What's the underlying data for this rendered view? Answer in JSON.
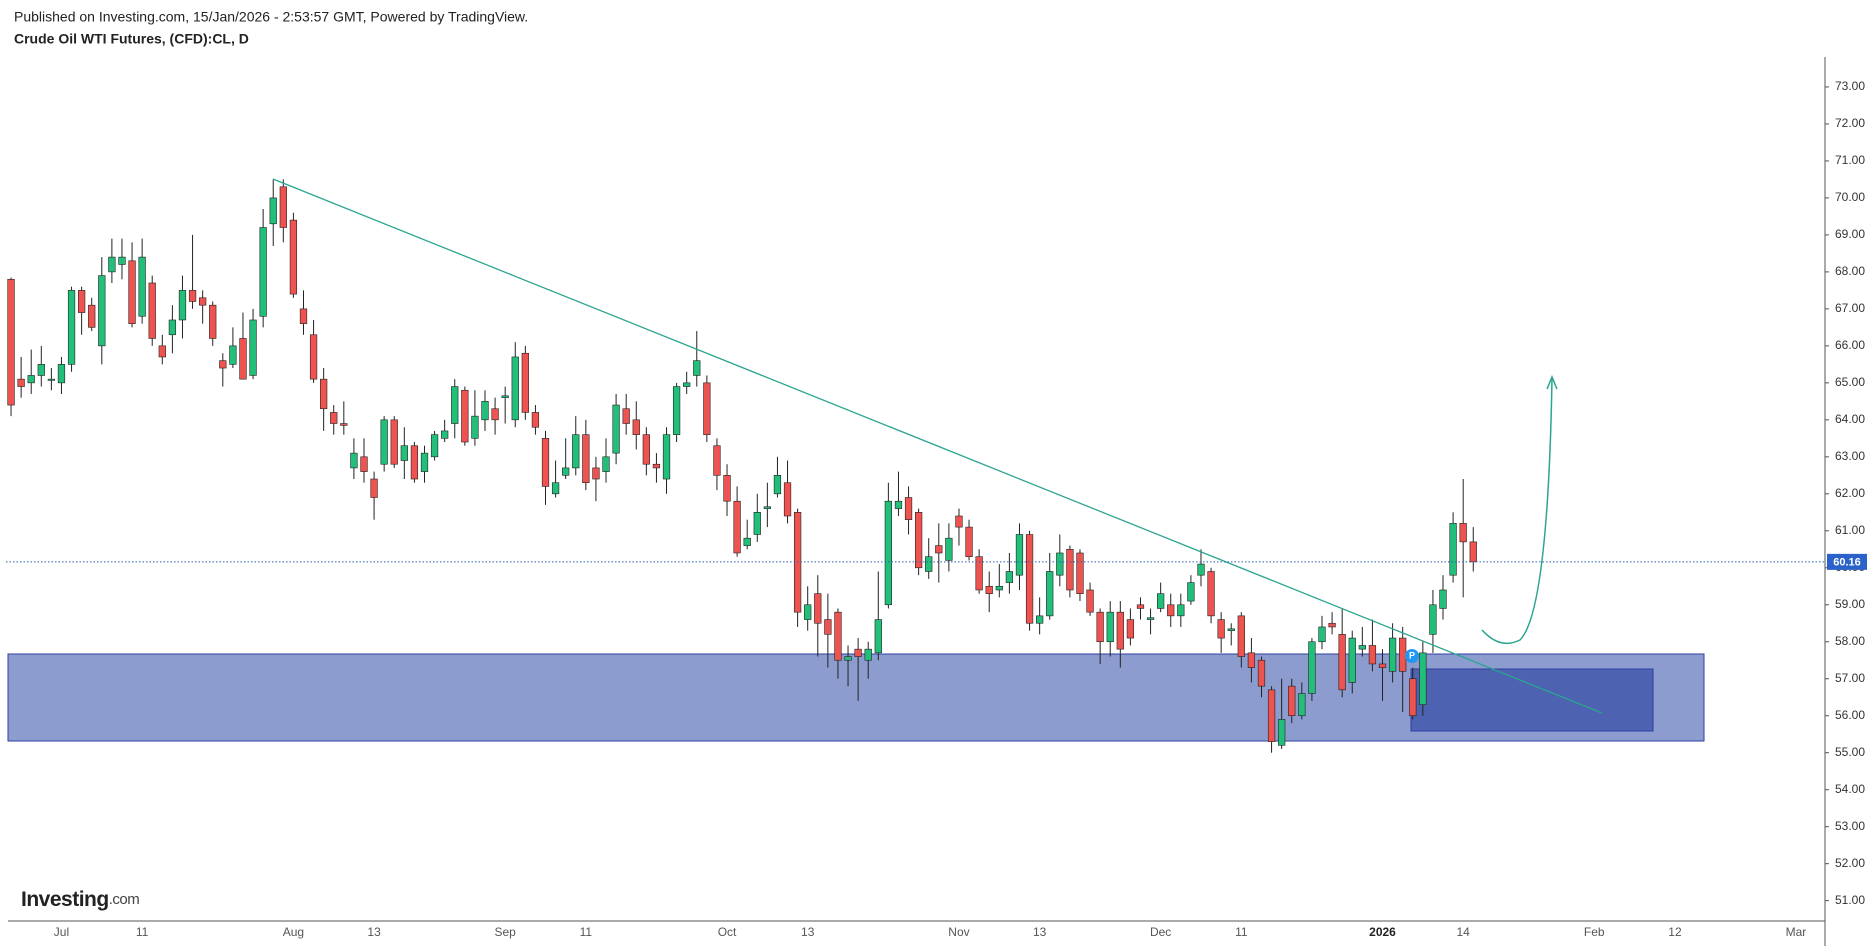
{
  "chart_data": {
    "type": "candlestick",
    "subtitle": "Published on Investing.com, 15/Jan/2026 - 2:53:57 GMT, Powered by TradingView.",
    "title": "Crude Oil WTI Futures, (CFD):CL, D",
    "up_color": "#22bf7a",
    "down_color": "#ef5350",
    "ylim": [
      50.45,
      73.81
    ],
    "yticks": [
      {
        "value": 51,
        "label": "51.00"
      },
      {
        "value": 52,
        "label": "52.00"
      },
      {
        "value": 53,
        "label": "53.00"
      },
      {
        "value": 54,
        "label": "54.00"
      },
      {
        "value": 55,
        "label": "55.00"
      },
      {
        "value": 56,
        "label": "56.00"
      },
      {
        "value": 57,
        "label": "57.00"
      },
      {
        "value": 58,
        "label": "58.00"
      },
      {
        "value": 59,
        "label": "59.00"
      },
      {
        "value": 60,
        "label": "60.00"
      },
      {
        "value": 61,
        "label": "61.00"
      },
      {
        "value": 62,
        "label": "62.00"
      },
      {
        "value": 63,
        "label": "63.00"
      },
      {
        "value": 64,
        "label": "64.00"
      },
      {
        "value": 65,
        "label": "65.00"
      },
      {
        "value": 66,
        "label": "66.00"
      },
      {
        "value": 67,
        "label": "67.00"
      },
      {
        "value": 68,
        "label": "68.00"
      },
      {
        "value": 69,
        "label": "69.00"
      },
      {
        "value": 70,
        "label": "70.00"
      },
      {
        "value": 71,
        "label": "71.00"
      },
      {
        "value": 72,
        "label": "72.00"
      },
      {
        "value": 73,
        "label": "73.00"
      }
    ],
    "categories": [
      null,
      null,
      null,
      null,
      null,
      "Jul",
      null,
      null,
      null,
      null,
      null,
      null,
      null,
      "11",
      null,
      null,
      null,
      null,
      null,
      null,
      null,
      null,
      null,
      null,
      null,
      null,
      null,
      null,
      "Aug",
      null,
      null,
      null,
      null,
      null,
      null,
      null,
      "13",
      null,
      null,
      null,
      null,
      null,
      null,
      null,
      null,
      null,
      null,
      null,
      null,
      "Sep",
      null,
      null,
      null,
      null,
      null,
      null,
      null,
      "11",
      null,
      null,
      null,
      null,
      null,
      null,
      null,
      null,
      null,
      null,
      null,
      null,
      null,
      "Oct",
      null,
      null,
      null,
      null,
      null,
      null,
      null,
      "13",
      null,
      null,
      null,
      null,
      null,
      null,
      null,
      null,
      null,
      null,
      null,
      null,
      null,
      null,
      "Nov",
      null,
      null,
      null,
      null,
      null,
      null,
      null,
      "13",
      null,
      null,
      null,
      null,
      null,
      null,
      null,
      null,
      null,
      null,
      null,
      "Dec",
      null,
      null,
      null,
      null,
      null,
      null,
      null,
      "11",
      null,
      null,
      null,
      null,
      null,
      null,
      null,
      null,
      null,
      null,
      null,
      null,
      null,
      "2026",
      null,
      null,
      null,
      null,
      null,
      null,
      null,
      "14",
      null,
      null,
      null,
      null,
      null,
      null,
      null,
      null,
      null,
      null,
      null,
      null,
      "Feb",
      null,
      null,
      null,
      null,
      null,
      null,
      null,
      "12",
      null,
      null,
      null,
      null,
      null,
      null,
      null,
      null,
      null,
      null,
      null,
      "Mar"
    ],
    "open": [
      67.8,
      65.1,
      65.0,
      65.2,
      65.1,
      65.0,
      65.5,
      67.5,
      67.1,
      66.0,
      68.0,
      68.2,
      68.3,
      66.8,
      67.7,
      66.0,
      66.3,
      66.7,
      67.5,
      67.3,
      67.1,
      65.6,
      65.5,
      66.2,
      65.2,
      66.8,
      69.3,
      70.3,
      69.4,
      67.0,
      66.3,
      65.1,
      64.2,
      63.9,
      62.7,
      63.0,
      62.4,
      62.8,
      64.0,
      62.9,
      63.3,
      62.6,
      63.0,
      63.5,
      63.9,
      64.8,
      63.5,
      64.0,
      64.3,
      64.6,
      64.0,
      65.8,
      64.2,
      63.5,
      62.0,
      62.5,
      62.7,
      63.6,
      62.7,
      62.6,
      63.1,
      64.3,
      64.0,
      63.6,
      62.8,
      62.4,
      63.6,
      64.9,
      65.2,
      65.0,
      63.3,
      62.5,
      61.8,
      60.6,
      60.9,
      61.6,
      62.0,
      62.3,
      61.5,
      58.6,
      59.3,
      58.6,
      58.8,
      57.5,
      57.8,
      57.5,
      57.7,
      59.0,
      61.6,
      61.9,
      61.5,
      59.9,
      60.6,
      60.2,
      61.4,
      61.1,
      60.3,
      59.5,
      59.4,
      59.6,
      59.8,
      60.9,
      58.5,
      58.7,
      59.8,
      60.5,
      60.4,
      59.4,
      58.8,
      58.0,
      58.8,
      58.6,
      59.0,
      58.6,
      58.9,
      59.0,
      58.7,
      59.1,
      59.8,
      59.9,
      58.6,
      58.3,
      58.7,
      57.7,
      57.5,
      56.7,
      55.2,
      56.8,
      56.0,
      56.6,
      58.0,
      58.5,
      58.2,
      56.9,
      57.8,
      57.9,
      57.4,
      57.2,
      58.1,
      57.0,
      56.3,
      58.2,
      58.9,
      59.8,
      61.2,
      60.7,
      null,
      null,
      null,
      null,
      null,
      null,
      null,
      null,
      null,
      null,
      null,
      null,
      null,
      null,
      null,
      null,
      null,
      null,
      null,
      null,
      null,
      null,
      null,
      null,
      null,
      null,
      null,
      null,
      null,
      null,
      null,
      null
    ],
    "high": [
      67.85,
      65.7,
      65.9,
      66.0,
      65.4,
      65.7,
      67.6,
      67.6,
      67.3,
      68.4,
      68.9,
      68.9,
      68.8,
      68.9,
      67.9,
      66.3,
      67.1,
      67.9,
      69.0,
      67.5,
      67.2,
      65.8,
      66.5,
      66.9,
      67.0,
      69.7,
      70.5,
      70.5,
      69.6,
      67.5,
      66.7,
      65.4,
      64.4,
      64.5,
      63.5,
      63.5,
      62.6,
      64.1,
      64.1,
      63.8,
      63.4,
      63.3,
      63.7,
      64.0,
      65.1,
      64.9,
      64.8,
      64.8,
      64.6,
      64.9,
      66.1,
      66.0,
      64.4,
      63.7,
      62.9,
      63.5,
      64.1,
      64.0,
      63.0,
      63.5,
      64.7,
      64.7,
      64.5,
      63.8,
      63.1,
      63.8,
      65.0,
      65.3,
      66.4,
      65.2,
      63.5,
      62.8,
      62.2,
      61.3,
      62.0,
      62.3,
      63.0,
      62.9,
      61.6,
      59.5,
      59.8,
      59.3,
      58.9,
      57.9,
      58.1,
      58.0,
      59.9,
      62.3,
      62.6,
      62.2,
      61.6,
      60.8,
      61.2,
      61.2,
      61.6,
      61.3,
      60.5,
      59.9,
      60.1,
      60.4,
      61.2,
      61.0,
      59.2,
      60.4,
      60.9,
      60.6,
      60.5,
      59.6,
      58.9,
      59.1,
      59.1,
      58.9,
      59.2,
      58.9,
      59.6,
      59.3,
      59.3,
      59.8,
      60.5,
      60.0,
      58.8,
      58.5,
      58.8,
      58.1,
      57.6,
      56.8,
      57.0,
      57.0,
      56.9,
      58.1,
      58.7,
      58.8,
      58.9,
      58.3,
      58.4,
      58.6,
      57.8,
      58.5,
      58.4,
      57.3,
      58.0,
      59.4,
      59.8,
      61.5,
      62.4,
      61.1,
      null,
      null,
      null,
      null,
      null,
      null,
      null,
      null,
      null,
      null,
      null,
      null,
      null,
      null,
      null,
      null,
      null,
      null,
      null,
      null,
      null,
      null,
      null,
      null,
      null,
      null,
      null,
      null,
      null,
      null,
      null,
      null
    ],
    "low": [
      64.1,
      64.6,
      64.7,
      64.9,
      64.8,
      64.7,
      65.3,
      66.3,
      66.4,
      65.5,
      67.7,
      67.8,
      66.5,
      66.6,
      66.0,
      65.5,
      65.8,
      66.2,
      67.0,
      66.6,
      66.0,
      64.9,
      65.4,
      65.1,
      65.1,
      66.5,
      68.7,
      68.8,
      67.3,
      66.3,
      65.0,
      63.7,
      63.6,
      63.6,
      62.4,
      62.3,
      61.3,
      62.6,
      62.7,
      62.4,
      62.3,
      62.3,
      62.9,
      63.4,
      63.5,
      63.3,
      63.3,
      63.7,
      63.6,
      63.9,
      63.8,
      64.0,
      63.6,
      61.7,
      61.9,
      62.4,
      62.5,
      62.1,
      61.8,
      62.3,
      62.8,
      63.6,
      63.2,
      62.5,
      62.3,
      62.0,
      63.4,
      64.7,
      64.9,
      63.4,
      62.1,
      61.4,
      60.3,
      60.5,
      60.7,
      61.1,
      61.9,
      61.2,
      58.4,
      58.3,
      57.6,
      57.3,
      57.0,
      56.8,
      56.4,
      57.0,
      57.5,
      58.9,
      61.4,
      60.9,
      59.8,
      59.7,
      59.6,
      59.9,
      60.6,
      60.2,
      59.3,
      58.8,
      59.2,
      59.3,
      59.4,
      58.3,
      58.2,
      58.6,
      59.5,
      59.2,
      59.1,
      58.7,
      57.4,
      57.6,
      57.3,
      57.9,
      58.6,
      58.2,
      58.8,
      58.4,
      58.4,
      59.0,
      59.5,
      58.5,
      57.7,
      57.9,
      57.3,
      56.9,
      56.5,
      55.0,
      55.1,
      55.8,
      55.9,
      56.4,
      57.8,
      58.2,
      56.5,
      56.6,
      57.6,
      57.2,
      56.4,
      56.9,
      56.1,
      55.9,
      56.0,
      57.7,
      58.6,
      59.6,
      59.2,
      59.9,
      null,
      null,
      null,
      null,
      null,
      null,
      null,
      null,
      null,
      null,
      null,
      null,
      null,
      null,
      null,
      null,
      null,
      null,
      null,
      null,
      null,
      null,
      null,
      null,
      null,
      null,
      null,
      null,
      null,
      null,
      null,
      null
    ],
    "close": [
      64.4,
      64.9,
      65.2,
      65.5,
      65.1,
      65.5,
      67.5,
      66.9,
      66.5,
      67.9,
      68.4,
      68.4,
      66.6,
      68.4,
      66.2,
      65.7,
      66.7,
      67.5,
      67.2,
      67.1,
      66.2,
      65.4,
      66.0,
      65.1,
      66.7,
      69.2,
      70.0,
      69.2,
      67.4,
      66.6,
      65.1,
      64.3,
      63.9,
      63.85,
      63.1,
      62.6,
      61.9,
      64.0,
      62.8,
      63.3,
      62.4,
      63.1,
      63.6,
      63.7,
      64.9,
      63.4,
      64.1,
      64.5,
      64.0,
      64.65,
      65.7,
      64.2,
      63.8,
      62.2,
      62.3,
      62.7,
      63.6,
      62.3,
      62.4,
      63.0,
      64.4,
      63.9,
      63.6,
      62.8,
      62.7,
      63.6,
      64.9,
      65.0,
      65.6,
      63.6,
      62.5,
      61.8,
      60.4,
      60.8,
      61.5,
      61.65,
      62.5,
      61.4,
      58.8,
      59.0,
      58.5,
      58.2,
      57.5,
      57.6,
      57.6,
      57.8,
      58.6,
      61.8,
      61.8,
      61.3,
      60.0,
      60.3,
      60.4,
      60.8,
      61.1,
      60.3,
      59.4,
      59.3,
      59.5,
      59.9,
      60.9,
      58.5,
      58.7,
      59.9,
      60.4,
      59.4,
      59.3,
      58.8,
      58.0,
      58.8,
      57.8,
      58.1,
      58.9,
      58.65,
      59.3,
      58.7,
      59.0,
      59.6,
      60.1,
      58.7,
      58.1,
      58.35,
      57.6,
      57.3,
      56.8,
      55.3,
      55.9,
      56.0,
      56.6,
      58.0,
      58.4,
      58.4,
      56.7,
      58.1,
      57.9,
      57.4,
      57.3,
      58.1,
      57.2,
      56.0,
      57.7,
      59.0,
      59.4,
      61.2,
      60.7,
      60.16,
      null,
      null,
      null,
      null,
      null,
      null,
      null,
      null,
      null,
      null,
      null,
      null,
      null,
      null,
      null,
      null,
      null,
      null,
      null,
      null,
      null,
      null,
      null,
      null,
      null,
      null,
      null,
      null,
      null,
      null,
      null,
      null
    ]
  },
  "logo": {
    "name": "Investing",
    "suffix": ".com"
  }
}
